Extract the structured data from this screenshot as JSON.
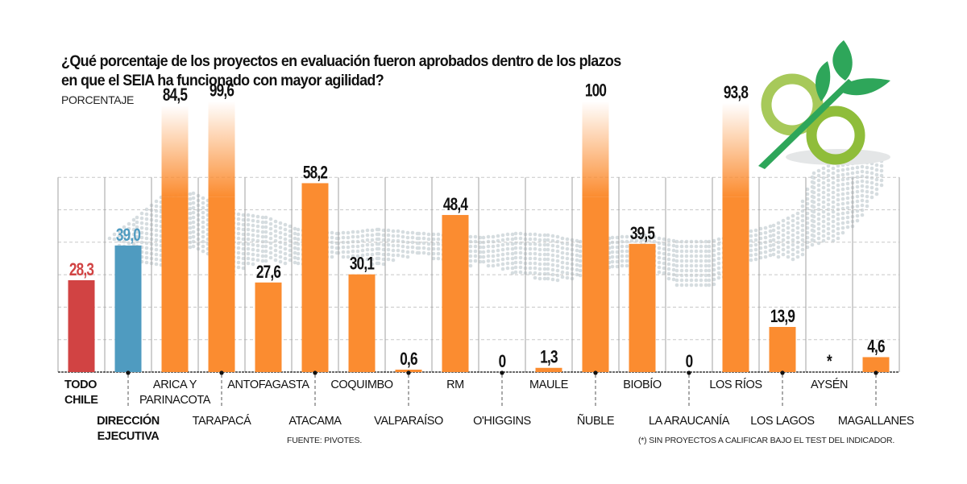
{
  "title": "¿Qué porcentaje de los proyectos en evaluación fueron aprobados dentro de los plazos en que el SEIA ha funcionado con mayor agilidad?",
  "title_line1": "¿Qué porcentaje de los proyectos en evaluación fueron aprobados dentro de los plazos",
  "title_line2": "en que el SEIA ha funcionado con mayor agilidad?",
  "subtitle": "PORCENTAJE",
  "source": "FUENTE: PIVOTES.",
  "footnote": "(*) SIN PROYECTOS A CALIFICAR BAJO EL TEST DEL INDICADOR.",
  "logo_icon": "percent-leaf-logo-icon",
  "colors": {
    "national": "#d14343",
    "executive": "#4f9bc0",
    "region": "#fb8c30",
    "map_dots": "#d6dde0",
    "grid": "#c8c8c8",
    "text": "#111111"
  },
  "chart_data": {
    "type": "bar",
    "title": "¿Qué porcentaje de los proyectos en evaluación fueron aprobados dentro de los plazos en que el SEIA ha funcionado con mayor agilidad?",
    "ylabel": "PORCENTAJE",
    "xlabel": "",
    "ylim": [
      0,
      100
    ],
    "grid": true,
    "categories": [
      "TODO CHILE",
      "DIRECCIÓN EJECUTIVA",
      "ARICA Y PARINACOTA",
      "TARAPACÁ",
      "ANTOFAGASTA",
      "ATACAMA",
      "COQUIMBO",
      "VALPARAÍSO",
      "RM",
      "O'HIGGINS",
      "MAULE",
      "ÑUBLE",
      "BIOBÍO",
      "LA ARAUCANÍA",
      "LOS RÍOS",
      "LOS LAGOS",
      "AYSÉN",
      "MAGALLANES"
    ],
    "values": [
      28.3,
      39.0,
      84.5,
      99.6,
      27.6,
      58.2,
      30.1,
      0.6,
      48.4,
      0,
      1.3,
      100,
      39.5,
      0,
      93.8,
      13.9,
      null,
      4.6
    ],
    "value_labels": [
      "28,3",
      "39,0",
      "84,5",
      "99,6",
      "27,6",
      "58,2",
      "30,1",
      "0,6",
      "48,4",
      "0",
      "1,3",
      "100",
      "39,5",
      "0",
      "93,8",
      "13,9",
      "*",
      "4,6"
    ],
    "bar_groups": [
      "national",
      "executive",
      "region",
      "region",
      "region",
      "region",
      "region",
      "region",
      "region",
      "region",
      "region",
      "region",
      "region",
      "region",
      "region",
      "region",
      "region",
      "region"
    ],
    "label_rows": [
      "top",
      "bottom",
      "top",
      "bottom",
      "top",
      "bottom",
      "top",
      "bottom",
      "top",
      "bottom",
      "top",
      "bottom",
      "top",
      "bottom",
      "top",
      "bottom",
      "top",
      "bottom"
    ],
    "label_lines": [
      [
        "TODO",
        "CHILE"
      ],
      [
        "DIRECCIÓN",
        "EJECUTIVA"
      ],
      [
        "ARICA Y",
        "PARINACOTA"
      ],
      [
        "TARAPACÁ"
      ],
      [
        "ANTOFAGASTA"
      ],
      [
        "ATACAMA"
      ],
      [
        "COQUIMBO"
      ],
      [
        "VALPARAÍSO"
      ],
      [
        "RM"
      ],
      [
        "O'HIGGINS"
      ],
      [
        "MAULE"
      ],
      [
        "ÑUBLE"
      ],
      [
        "BIOBÍO"
      ],
      [
        "LA ARAUCANÍA"
      ],
      [
        "LOS RÍOS"
      ],
      [
        "LOS LAGOS"
      ],
      [
        "AYSÉN"
      ],
      [
        "MAGALLANES"
      ]
    ],
    "bold_labels": [
      "TODO CHILE",
      "DIRECCIÓN EJECUTIVA"
    ],
    "y_gridlines": [
      10,
      20,
      30,
      40,
      50,
      60
    ],
    "faded_above": 60
  }
}
